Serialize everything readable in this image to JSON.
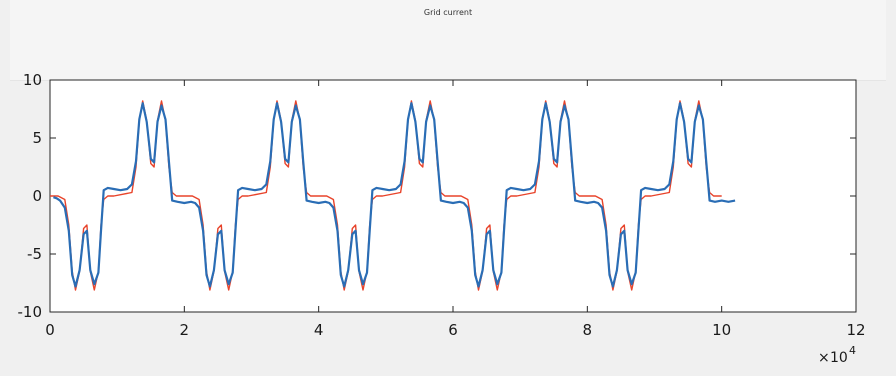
{
  "chart_data": {
    "type": "line",
    "title": "Grid current",
    "xlabel": "",
    "ylabel": "",
    "xlim": [
      0,
      12
    ],
    "ylim": [
      -10,
      10
    ],
    "x_ticks": [
      "0",
      "2",
      "4",
      "6",
      "8",
      "10",
      "12"
    ],
    "y_ticks": [
      "10",
      "5",
      "0",
      "-5",
      "-10"
    ],
    "x_multiplier": "10",
    "x_multiplier_exponent": "4",
    "grid": false,
    "series": [
      {
        "color": "#e8432a",
        "x": [
          0,
          0.12,
          0.22,
          0.28,
          0.33,
          0.38,
          0.44,
          0.5,
          0.55,
          0.6,
          0.66,
          0.72,
          0.76,
          0.8,
          0.86,
          0.95,
          1.22,
          1.28,
          1.33,
          1.38,
          1.44,
          1.5,
          1.55,
          1.6,
          1.66,
          1.72,
          1.77,
          1.82,
          1.88,
          2.0,
          2.12,
          2.22,
          2.28,
          2.33,
          2.38,
          2.44,
          2.5,
          2.55,
          2.6,
          2.66,
          2.72,
          2.76,
          2.8,
          2.86,
          2.95,
          3.22,
          3.28,
          3.33,
          3.38,
          3.44,
          3.5,
          3.55,
          3.6,
          3.66,
          3.72,
          3.77,
          3.82,
          3.88,
          4.0,
          4.12,
          4.22,
          4.28,
          4.33,
          4.38,
          4.44,
          4.5,
          4.55,
          4.6,
          4.66,
          4.72,
          4.76,
          4.8,
          4.86,
          4.95,
          5.22,
          5.28,
          5.33,
          5.38,
          5.44,
          5.5,
          5.55,
          5.6,
          5.66,
          5.72,
          5.77,
          5.82,
          5.88,
          6.0,
          6.12,
          6.22,
          6.28,
          6.33,
          6.38,
          6.44,
          6.5,
          6.55,
          6.6,
          6.66,
          6.72,
          6.76,
          6.8,
          6.86,
          6.95,
          7.22,
          7.28,
          7.33,
          7.38,
          7.44,
          7.5,
          7.55,
          7.6,
          7.66,
          7.72,
          7.77,
          7.82,
          7.88,
          8.0,
          8.12,
          8.22,
          8.28,
          8.33,
          8.38,
          8.44,
          8.5,
          8.55,
          8.6,
          8.66,
          8.72,
          8.76,
          8.8,
          8.86,
          8.95,
          9.22,
          9.28,
          9.33,
          9.38,
          9.44,
          9.5,
          9.55,
          9.6,
          9.66,
          9.72,
          9.77,
          9.82,
          9.88,
          10.0
        ],
        "y": [
          0,
          0,
          -0.3,
          -2.5,
          -6.5,
          -8.1,
          -6.5,
          -2.8,
          -2.5,
          -6.5,
          -8.1,
          -6.5,
          -2.5,
          -0.3,
          0,
          0,
          0.3,
          2.5,
          6.5,
          8.2,
          6.5,
          2.8,
          2.5,
          6.5,
          8.2,
          6.5,
          2.5,
          0.3,
          0,
          0,
          0,
          -0.3,
          -2.5,
          -6.5,
          -8.1,
          -6.5,
          -2.8,
          -2.5,
          -6.5,
          -8.1,
          -6.5,
          -2.5,
          -0.3,
          0,
          0,
          0.3,
          2.5,
          6.5,
          8.2,
          6.5,
          2.8,
          2.5,
          6.5,
          8.2,
          6.5,
          2.5,
          0.3,
          0,
          0,
          0,
          -0.3,
          -2.5,
          -6.5,
          -8.1,
          -6.5,
          -2.8,
          -2.5,
          -6.5,
          -8.1,
          -6.5,
          -2.5,
          -0.3,
          0,
          0,
          0.3,
          2.5,
          6.5,
          8.2,
          6.5,
          2.8,
          2.5,
          6.5,
          8.2,
          6.5,
          2.5,
          0.3,
          0,
          0,
          0,
          -0.3,
          -2.5,
          -6.5,
          -8.1,
          -6.5,
          -2.8,
          -2.5,
          -6.5,
          -8.1,
          -6.5,
          -2.5,
          -0.3,
          0,
          0,
          0.3,
          2.5,
          6.5,
          8.2,
          6.5,
          2.8,
          2.5,
          6.5,
          8.2,
          6.5,
          2.5,
          0.3,
          0,
          0,
          0,
          -0.3,
          -2.5,
          -6.5,
          -8.1,
          -6.5,
          -2.8,
          -2.5,
          -6.5,
          -8.1,
          -6.5,
          -2.5,
          -0.3,
          0,
          0,
          0.3,
          2.5,
          6.5,
          8.2,
          6.5,
          2.8,
          2.5,
          6.5,
          8.2,
          6.5,
          2.5,
          0.3,
          0,
          0
        ]
      },
      {
        "color": "#2a6db5",
        "x": [
          0.05,
          0.1,
          0.15,
          0.22,
          0.28,
          0.33,
          0.38,
          0.44,
          0.5,
          0.55,
          0.6,
          0.66,
          0.72,
          0.76,
          0.8,
          0.86,
          0.95,
          1.05,
          1.15,
          1.22,
          1.28,
          1.33,
          1.38,
          1.44,
          1.5,
          1.55,
          1.6,
          1.66,
          1.72,
          1.77,
          1.82,
          1.9,
          2.0,
          2.1,
          2.16,
          2.22,
          2.28,
          2.33,
          2.38,
          2.44,
          2.5,
          2.55,
          2.6,
          2.66,
          2.72,
          2.76,
          2.8,
          2.86,
          2.95,
          3.05,
          3.15,
          3.22,
          3.28,
          3.33,
          3.38,
          3.44,
          3.5,
          3.55,
          3.6,
          3.66,
          3.72,
          3.77,
          3.82,
          3.9,
          4.0,
          4.1,
          4.16,
          4.22,
          4.28,
          4.33,
          4.38,
          4.44,
          4.5,
          4.55,
          4.6,
          4.66,
          4.72,
          4.76,
          4.8,
          4.86,
          4.95,
          5.05,
          5.15,
          5.22,
          5.28,
          5.33,
          5.38,
          5.44,
          5.5,
          5.55,
          5.6,
          5.66,
          5.72,
          5.77,
          5.82,
          5.9,
          6.0,
          6.1,
          6.16,
          6.22,
          6.28,
          6.33,
          6.38,
          6.44,
          6.5,
          6.55,
          6.6,
          6.66,
          6.72,
          6.76,
          6.8,
          6.86,
          6.95,
          7.05,
          7.15,
          7.22,
          7.28,
          7.33,
          7.38,
          7.44,
          7.5,
          7.55,
          7.6,
          7.66,
          7.72,
          7.77,
          7.82,
          7.9,
          8.0,
          8.1,
          8.16,
          8.22,
          8.28,
          8.33,
          8.38,
          8.44,
          8.5,
          8.55,
          8.6,
          8.66,
          8.72,
          8.76,
          8.8,
          8.86,
          8.95,
          9.05,
          9.15,
          9.22,
          9.28,
          9.33,
          9.38,
          9.44,
          9.5,
          9.55,
          9.6,
          9.66,
          9.72,
          9.77,
          9.82,
          9.9,
          10.0,
          10.1,
          10.2
        ],
        "y": [
          -0.1,
          -0.2,
          -0.4,
          -1.0,
          -3.0,
          -6.8,
          -7.8,
          -6.4,
          -3.3,
          -3.0,
          -6.4,
          -7.6,
          -6.6,
          -3.0,
          0.5,
          0.7,
          0.6,
          0.5,
          0.6,
          1.0,
          3.0,
          6.6,
          8.0,
          6.4,
          3.2,
          2.9,
          6.4,
          7.8,
          6.6,
          3.0,
          -0.4,
          -0.5,
          -0.6,
          -0.5,
          -0.6,
          -1.0,
          -3.0,
          -6.8,
          -7.8,
          -6.4,
          -3.3,
          -3.0,
          -6.4,
          -7.6,
          -6.6,
          -3.0,
          0.5,
          0.7,
          0.6,
          0.5,
          0.6,
          1.0,
          3.0,
          6.6,
          8.0,
          6.4,
          3.2,
          2.9,
          6.4,
          7.8,
          6.6,
          3.0,
          -0.4,
          -0.5,
          -0.6,
          -0.5,
          -0.6,
          -1.0,
          -3.0,
          -6.8,
          -7.8,
          -6.4,
          -3.3,
          -3.0,
          -6.4,
          -7.6,
          -6.6,
          -3.0,
          0.5,
          0.7,
          0.6,
          0.5,
          0.6,
          1.0,
          3.0,
          6.6,
          8.0,
          6.4,
          3.2,
          2.9,
          6.4,
          7.8,
          6.6,
          3.0,
          -0.4,
          -0.5,
          -0.6,
          -0.5,
          -0.6,
          -1.0,
          -3.0,
          -6.8,
          -7.8,
          -6.4,
          -3.3,
          -3.0,
          -6.4,
          -7.6,
          -6.6,
          -3.0,
          0.5,
          0.7,
          0.6,
          0.5,
          0.6,
          1.0,
          3.0,
          6.6,
          8.0,
          6.4,
          3.2,
          2.9,
          6.4,
          7.8,
          6.6,
          3.0,
          -0.4,
          -0.5,
          -0.6,
          -0.5,
          -0.6,
          -1.0,
          -3.0,
          -6.8,
          -7.8,
          -6.4,
          -3.3,
          -3.0,
          -6.4,
          -7.6,
          -6.6,
          -3.0,
          0.5,
          0.7,
          0.6,
          0.5,
          0.6,
          1.0,
          3.0,
          6.6,
          8.0,
          6.4,
          3.2,
          2.9,
          6.4,
          7.8,
          6.6,
          3.0,
          -0.4,
          -0.5,
          -0.4,
          -0.5,
          -0.4
        ]
      }
    ]
  }
}
